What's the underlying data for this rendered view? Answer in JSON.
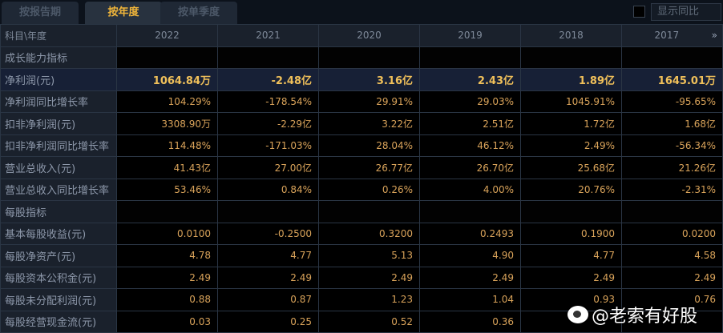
{
  "tabs": [
    {
      "label": "按报告期",
      "active": false
    },
    {
      "label": "按年度",
      "active": true
    },
    {
      "label": "按单季度",
      "active": false
    }
  ],
  "show_yoy": {
    "label": "显示同比",
    "checked": false
  },
  "table": {
    "corner": "科目\\年度",
    "years": [
      "2022",
      "2021",
      "2020",
      "2019",
      "2018",
      "2017"
    ],
    "more_icon": "»",
    "rows": [
      {
        "label": "成长能力指标",
        "section": true,
        "values": [
          "",
          "",
          "",
          "",
          "",
          ""
        ]
      },
      {
        "label": "净利润(元)",
        "highlight": true,
        "values": [
          "1064.84万",
          "-2.48亿",
          "3.16亿",
          "2.43亿",
          "1.89亿",
          "1645.01万"
        ]
      },
      {
        "label": "净利润同比增长率",
        "values": [
          "104.29%",
          "-178.54%",
          "29.91%",
          "29.03%",
          "1045.91%",
          "-95.65%"
        ]
      },
      {
        "label": "扣非净利润(元)",
        "values": [
          "3308.90万",
          "-2.29亿",
          "3.22亿",
          "2.51亿",
          "1.72亿",
          "1.68亿"
        ]
      },
      {
        "label": "扣非净利润同比增长率",
        "values": [
          "114.48%",
          "-171.03%",
          "28.04%",
          "46.12%",
          "2.49%",
          "-56.34%"
        ]
      },
      {
        "label": "营业总收入(元)",
        "values": [
          "41.43亿",
          "27.00亿",
          "26.77亿",
          "26.70亿",
          "25.68亿",
          "21.26亿"
        ]
      },
      {
        "label": "营业总收入同比增长率",
        "values": [
          "53.46%",
          "0.84%",
          "0.26%",
          "4.00%",
          "20.76%",
          "-2.31%"
        ]
      },
      {
        "label": "每股指标",
        "section": true,
        "values": [
          "",
          "",
          "",
          "",
          "",
          ""
        ]
      },
      {
        "label": "基本每股收益(元)",
        "values": [
          "0.0100",
          "-0.2500",
          "0.3200",
          "0.2493",
          "0.1900",
          "0.0200"
        ]
      },
      {
        "label": "每股净资产(元)",
        "values": [
          "4.78",
          "4.77",
          "5.13",
          "4.90",
          "4.77",
          "4.58"
        ]
      },
      {
        "label": "每股资本公积金(元)",
        "values": [
          "2.49",
          "2.49",
          "2.49",
          "2.49",
          "2.49",
          "2.49"
        ]
      },
      {
        "label": "每股未分配利润(元)",
        "values": [
          "0.88",
          "0.87",
          "1.23",
          "1.04",
          "0.93",
          "0.76"
        ]
      },
      {
        "label": "每股经营现金流(元)",
        "values": [
          "0.03",
          "0.25",
          "0.52",
          "0.36",
          "",
          ""
        ]
      }
    ]
  },
  "watermark": "@老索有好股"
}
